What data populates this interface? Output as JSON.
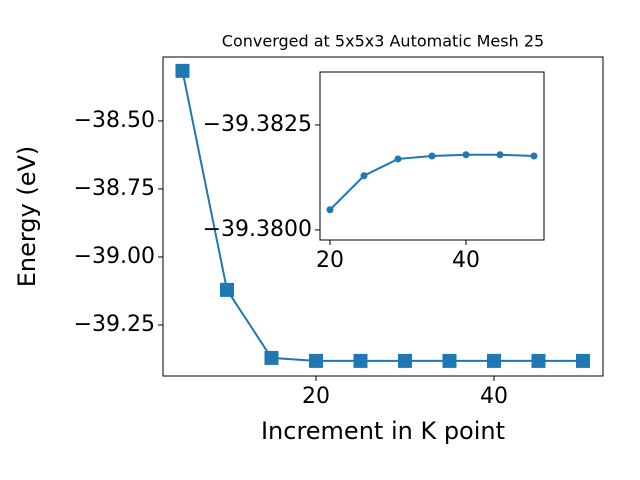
{
  "chart_data": [
    {
      "type": "line",
      "title": "Converged at 5x5x3 Automatic Mesh 25",
      "x_label": "Increment in K point",
      "y_label": "Energy (eV)",
      "x": [
        5,
        10,
        15,
        20,
        25,
        30,
        35,
        40,
        45,
        50
      ],
      "series": [
        {
          "color": "#1f77b4",
          "marker": "square",
          "values": [
            -38.316,
            -39.121,
            -39.371,
            -39.382,
            -39.382,
            -39.382,
            -39.382,
            -39.382,
            -39.382,
            -39.382
          ]
        }
      ],
      "xlim": [
        2.81,
        52.25
      ],
      "xticks": [
        20,
        40
      ],
      "ylim": [
        -39.4375,
        -38.265
      ],
      "yticks": [
        {
          "value": -38.5,
          "label": "−38.50"
        },
        {
          "value": -38.75,
          "label": "−38.75"
        },
        {
          "value": -39.0,
          "label": "−39.00"
        },
        {
          "value": -39.25,
          "label": "−39.25"
        }
      ]
    },
    {
      "type": "line",
      "x": [
        20,
        25,
        30,
        35,
        40,
        45,
        50
      ],
      "series": [
        {
          "color": "#1f77b4",
          "marker": "circle",
          "values": [
            -39.38048,
            -39.38129,
            -39.38169,
            -39.38176,
            -39.38179,
            -39.38179,
            -39.38176
          ]
        }
      ],
      "xlim": [
        18.53,
        51.47
      ],
      "xticks": [
        20,
        40
      ],
      "ylim": [
        -39.37976,
        -39.38376
      ],
      "yticks": [
        {
          "value": -39.3825,
          "label": "−39.3825"
        },
        {
          "value": -39.38,
          "label": "−39.3800"
        }
      ]
    }
  ]
}
